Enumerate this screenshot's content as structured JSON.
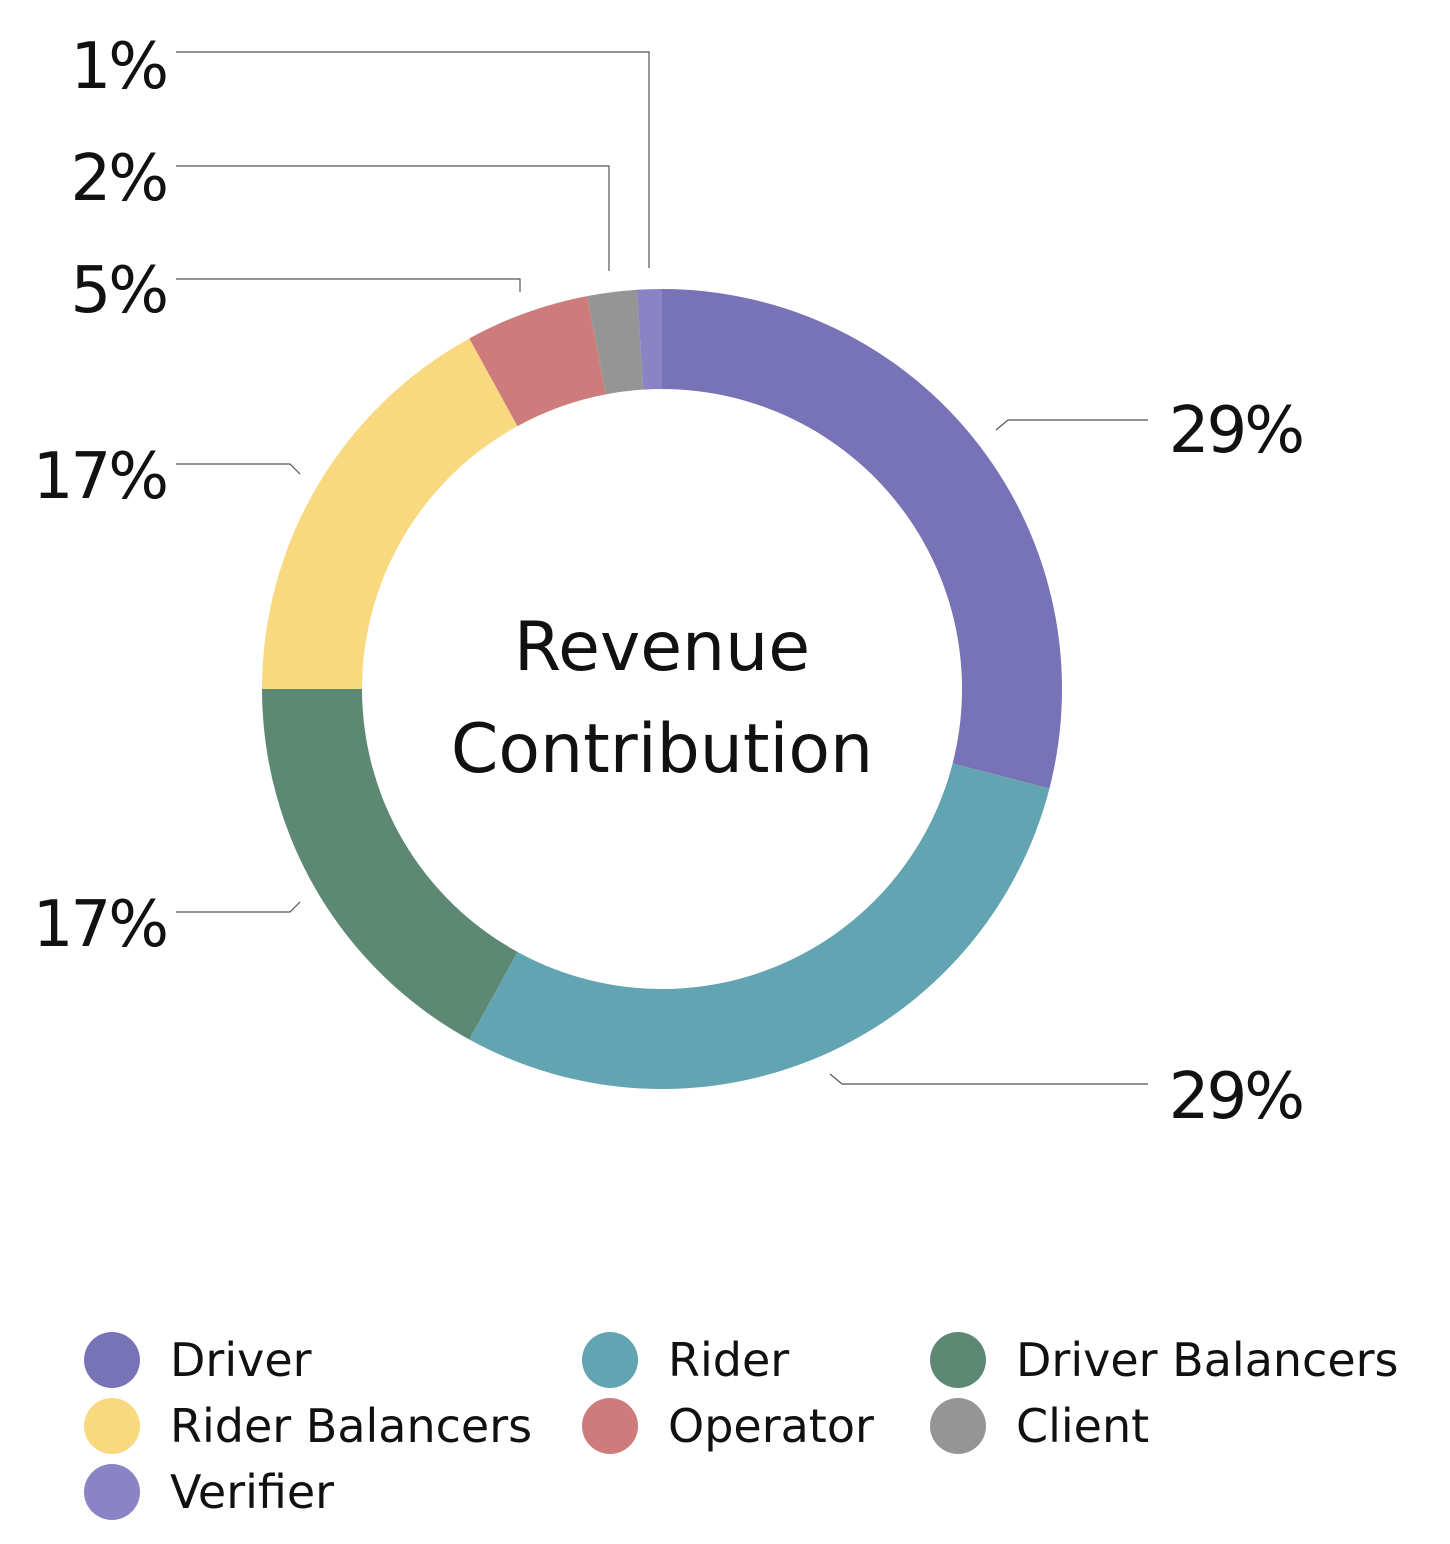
{
  "chart_data": {
    "type": "pie",
    "variant": "donut",
    "title": "Revenue Contribution",
    "title_lines": [
      "Revenue",
      "Contribution"
    ],
    "slices": [
      {
        "name": "Driver",
        "value": 29,
        "label": "29%",
        "color": "#7873B7"
      },
      {
        "name": "Rider",
        "value": 29,
        "label": "29%",
        "color": "#62A4B1"
      },
      {
        "name": "Driver Balancers",
        "value": 17,
        "label": "17%",
        "color": "#5D8974"
      },
      {
        "name": "Rider Balancers",
        "value": 17,
        "label": "17%",
        "color": "#F8D97F"
      },
      {
        "name": "Operator",
        "value": 5,
        "label": "5%",
        "color": "#CE7B7B"
      },
      {
        "name": "Client",
        "value": 2,
        "label": "2%",
        "color": "#959595"
      },
      {
        "name": "Verifier",
        "value": 1,
        "label": "1%",
        "color": "#8A84C4"
      }
    ],
    "legend": {
      "placement": "bottom",
      "entries": [
        "Driver",
        "Rider",
        "Driver Balancers",
        "Rider Balancers",
        "Operator",
        "Client",
        "Verifier"
      ]
    }
  }
}
